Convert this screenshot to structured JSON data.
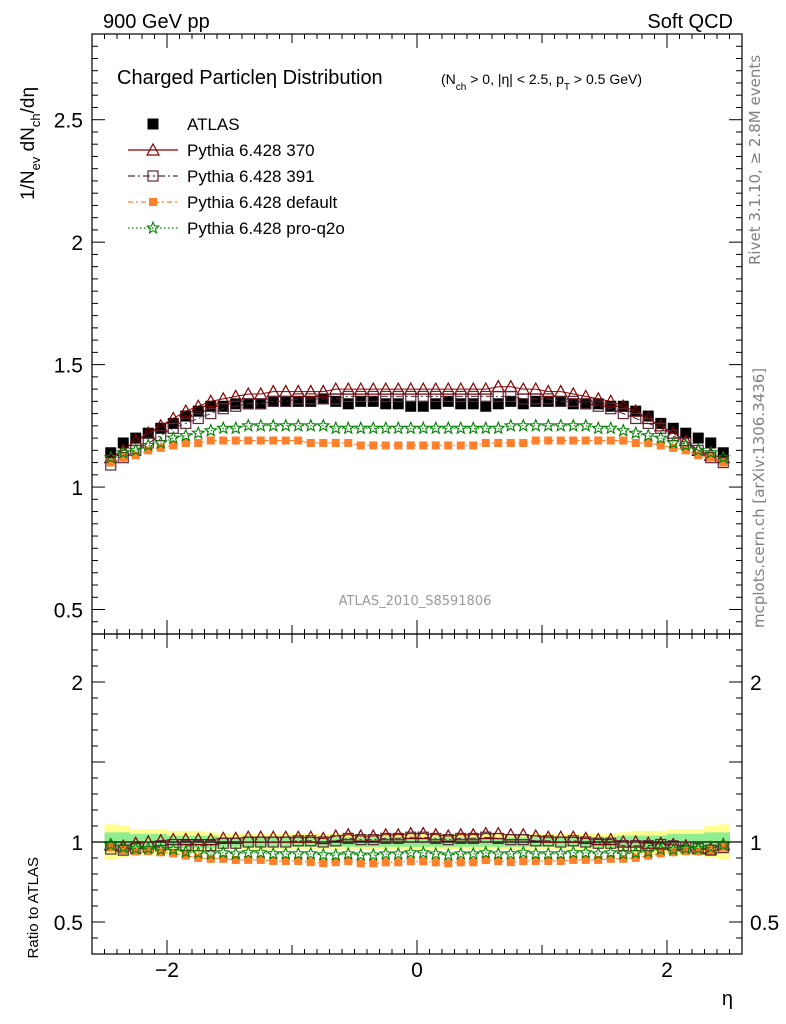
{
  "header": {
    "left": "900 GeV pp",
    "right": "Soft QCD"
  },
  "side_labels": {
    "rivet": "Rivet 3.1.10, ≥ 2.8M events",
    "mcplots": "mcplots.cern.ch [arXiv:1306.3436]"
  },
  "analysis_id": "ATLAS_2010_S8591806",
  "chart_data": [
    {
      "panel": "main",
      "type": "scatter",
      "title": "Charged Particleη Distribution",
      "title_condition": "(N_ch > 0, |η| < 2.5, p_T > 0.5 GeV)",
      "ylabel": "1/N_ev dN_ch/dη",
      "xlabel": "η",
      "xlim": [
        -2.6,
        2.6
      ],
      "ylim": [
        0.4,
        2.85
      ],
      "yticks": [
        0.5,
        1,
        1.5,
        2,
        2.5
      ],
      "ytick_labels": [
        "0.5",
        "1",
        "1.5",
        "2",
        "2.5"
      ],
      "legend_position": "top-left",
      "x": [
        -2.45,
        -2.35,
        -2.25,
        -2.15,
        -2.05,
        -1.95,
        -1.85,
        -1.75,
        -1.65,
        -1.55,
        -1.45,
        -1.35,
        -1.25,
        -1.15,
        -1.05,
        -0.95,
        -0.85,
        -0.75,
        -0.65,
        -0.55,
        -0.45,
        -0.35,
        -0.25,
        -0.15,
        -0.05,
        0.05,
        0.15,
        0.25,
        0.35,
        0.45,
        0.55,
        0.65,
        0.75,
        0.85,
        0.95,
        1.05,
        1.15,
        1.25,
        1.35,
        1.45,
        1.55,
        1.65,
        1.75,
        1.85,
        1.95,
        2.05,
        2.15,
        2.25,
        2.35,
        2.45
      ],
      "series": [
        {
          "name": "ATLAS",
          "marker": "filled-square",
          "color": "#000000",
          "values": [
            1.14,
            1.18,
            1.2,
            1.22,
            1.24,
            1.26,
            1.29,
            1.31,
            1.33,
            1.33,
            1.34,
            1.34,
            1.34,
            1.35,
            1.35,
            1.35,
            1.35,
            1.36,
            1.35,
            1.34,
            1.35,
            1.35,
            1.34,
            1.34,
            1.33,
            1.33,
            1.34,
            1.35,
            1.34,
            1.34,
            1.33,
            1.34,
            1.35,
            1.34,
            1.35,
            1.35,
            1.35,
            1.34,
            1.34,
            1.34,
            1.33,
            1.33,
            1.31,
            1.29,
            1.26,
            1.24,
            1.22,
            1.2,
            1.18,
            1.14
          ]
        },
        {
          "name": "Pythia 6.428 370",
          "marker": "open-triangle",
          "color": "#800000",
          "values": [
            1.12,
            1.15,
            1.19,
            1.22,
            1.25,
            1.28,
            1.31,
            1.33,
            1.35,
            1.36,
            1.37,
            1.38,
            1.38,
            1.39,
            1.39,
            1.39,
            1.39,
            1.39,
            1.4,
            1.4,
            1.4,
            1.4,
            1.4,
            1.4,
            1.4,
            1.4,
            1.4,
            1.4,
            1.4,
            1.4,
            1.4,
            1.41,
            1.41,
            1.4,
            1.4,
            1.39,
            1.39,
            1.38,
            1.37,
            1.36,
            1.35,
            1.33,
            1.31,
            1.28,
            1.25,
            1.22,
            1.19,
            1.15,
            1.13,
            1.12
          ]
        },
        {
          "name": "Pythia 6.428 391",
          "marker": "open-square",
          "color": "#5a2a3a",
          "values": [
            1.09,
            1.12,
            1.15,
            1.18,
            1.21,
            1.24,
            1.26,
            1.28,
            1.3,
            1.32,
            1.33,
            1.34,
            1.34,
            1.35,
            1.35,
            1.36,
            1.36,
            1.36,
            1.36,
            1.37,
            1.37,
            1.37,
            1.37,
            1.37,
            1.37,
            1.37,
            1.37,
            1.37,
            1.37,
            1.37,
            1.37,
            1.37,
            1.37,
            1.36,
            1.36,
            1.36,
            1.35,
            1.35,
            1.34,
            1.33,
            1.32,
            1.3,
            1.28,
            1.26,
            1.24,
            1.21,
            1.18,
            1.15,
            1.12,
            1.1
          ]
        },
        {
          "name": "Pythia 6.428 default",
          "marker": "filled-square-small",
          "color": "#ff7f2a",
          "values": [
            1.1,
            1.12,
            1.13,
            1.15,
            1.16,
            1.17,
            1.18,
            1.18,
            1.19,
            1.19,
            1.19,
            1.19,
            1.19,
            1.19,
            1.19,
            1.19,
            1.18,
            1.18,
            1.18,
            1.18,
            1.17,
            1.17,
            1.17,
            1.17,
            1.17,
            1.17,
            1.17,
            1.17,
            1.17,
            1.17,
            1.18,
            1.18,
            1.18,
            1.18,
            1.19,
            1.19,
            1.19,
            1.19,
            1.19,
            1.19,
            1.19,
            1.19,
            1.18,
            1.18,
            1.17,
            1.16,
            1.15,
            1.13,
            1.12,
            1.1
          ]
        },
        {
          "name": "Pythia 6.428 pro-q2o",
          "marker": "open-star",
          "color": "#008000",
          "values": [
            1.12,
            1.14,
            1.15,
            1.17,
            1.18,
            1.2,
            1.21,
            1.22,
            1.23,
            1.24,
            1.24,
            1.25,
            1.25,
            1.25,
            1.25,
            1.25,
            1.25,
            1.25,
            1.24,
            1.24,
            1.24,
            1.24,
            1.24,
            1.24,
            1.24,
            1.24,
            1.24,
            1.24,
            1.24,
            1.24,
            1.24,
            1.24,
            1.25,
            1.25,
            1.25,
            1.25,
            1.25,
            1.25,
            1.25,
            1.24,
            1.24,
            1.23,
            1.22,
            1.21,
            1.2,
            1.18,
            1.17,
            1.15,
            1.14,
            1.12
          ]
        }
      ]
    },
    {
      "panel": "ratio",
      "type": "scatter",
      "ylabel": "Ratio to ATLAS",
      "xlabel": "η",
      "xlim": [
        -2.6,
        2.6
      ],
      "ylim": [
        0.3,
        2.3
      ],
      "yticks": [
        0.5,
        1,
        2
      ],
      "ytick_labels": [
        "0.5",
        "1",
        "2"
      ],
      "xticks": [
        -2,
        0,
        2
      ],
      "xtick_labels": [
        "−2",
        "0",
        "2"
      ],
      "band_colors": {
        "stat": "#90ee90",
        "total": "#ffff8f"
      },
      "bands": {
        "stat_halfwidth": [
          0.06,
          0.06,
          0.05,
          0.05,
          0.05,
          0.04,
          0.04,
          0.04,
          0.04,
          0.03,
          0.03,
          0.03,
          0.03,
          0.03,
          0.03,
          0.03,
          0.03,
          0.03,
          0.03,
          0.03,
          0.03,
          0.03,
          0.03,
          0.03,
          0.03,
          0.03,
          0.03,
          0.03,
          0.03,
          0.03,
          0.03,
          0.03,
          0.03,
          0.03,
          0.03,
          0.03,
          0.03,
          0.03,
          0.03,
          0.03,
          0.03,
          0.04,
          0.04,
          0.04,
          0.04,
          0.05,
          0.05,
          0.05,
          0.06,
          0.06
        ],
        "total_halfwidth": [
          0.11,
          0.1,
          0.08,
          0.08,
          0.08,
          0.07,
          0.07,
          0.07,
          0.06,
          0.05,
          0.05,
          0.05,
          0.05,
          0.05,
          0.05,
          0.05,
          0.05,
          0.05,
          0.05,
          0.05,
          0.05,
          0.05,
          0.05,
          0.05,
          0.05,
          0.05,
          0.05,
          0.05,
          0.05,
          0.05,
          0.05,
          0.05,
          0.05,
          0.05,
          0.05,
          0.05,
          0.05,
          0.05,
          0.05,
          0.05,
          0.05,
          0.06,
          0.07,
          0.07,
          0.07,
          0.08,
          0.08,
          0.08,
          0.1,
          0.11
        ]
      }
    }
  ]
}
